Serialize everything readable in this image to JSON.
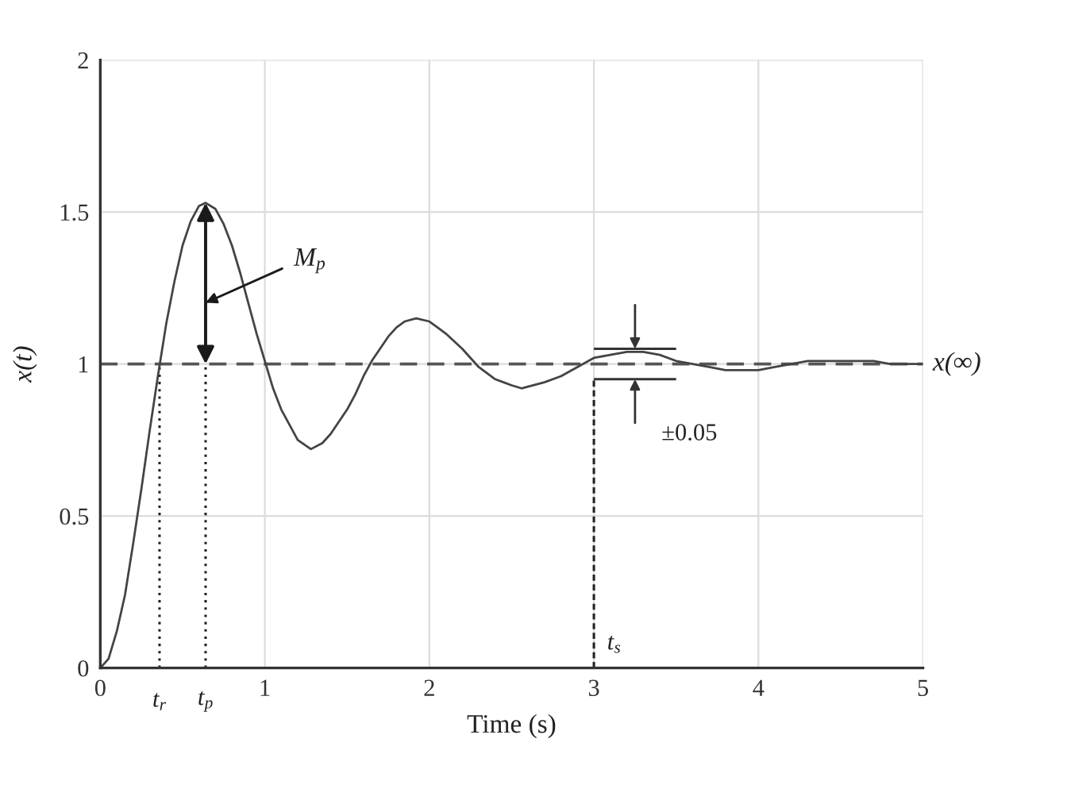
{
  "chart_data": {
    "type": "line",
    "xlabel": "Time (s)",
    "ylabel": "x(t)",
    "x": [
      0,
      0.05,
      0.1,
      0.15,
      0.2,
      0.25,
      0.3,
      0.35,
      0.4,
      0.45,
      0.5,
      0.55,
      0.6,
      0.64,
      0.7,
      0.75,
      0.8,
      0.85,
      0.9,
      0.95,
      1.0,
      1.05,
      1.1,
      1.2,
      1.28,
      1.35,
      1.4,
      1.5,
      1.55,
      1.6,
      1.65,
      1.7,
      1.75,
      1.8,
      1.85,
      1.92,
      2.0,
      2.05,
      2.1,
      2.2,
      2.25,
      2.3,
      2.35,
      2.4,
      2.45,
      2.5,
      2.56,
      2.7,
      2.8,
      2.9,
      3.0,
      3.1,
      3.2,
      3.3,
      3.4,
      3.5,
      3.6,
      3.7,
      3.8,
      3.9,
      4.0,
      4.1,
      4.2,
      4.3,
      4.4,
      4.5,
      4.6,
      4.7,
      4.8,
      4.9,
      5.0
    ],
    "series": [
      {
        "color": "#444444",
        "values": [
          0,
          0.03,
          0.12,
          0.24,
          0.41,
          0.59,
          0.78,
          0.96,
          1.13,
          1.27,
          1.39,
          1.47,
          1.52,
          1.53,
          1.51,
          1.46,
          1.39,
          1.3,
          1.2,
          1.1,
          1.01,
          0.92,
          0.85,
          0.75,
          0.72,
          0.74,
          0.77,
          0.85,
          0.9,
          0.96,
          1.01,
          1.05,
          1.09,
          1.12,
          1.14,
          1.15,
          1.14,
          1.12,
          1.1,
          1.05,
          1.02,
          0.99,
          0.97,
          0.95,
          0.94,
          0.93,
          0.92,
          0.94,
          0.96,
          0.99,
          1.02,
          1.03,
          1.04,
          1.04,
          1.03,
          1.01,
          1.0,
          0.99,
          0.98,
          0.98,
          0.98,
          0.99,
          1.0,
          1.01,
          1.01,
          1.01,
          1.01,
          1.01,
          1.0,
          1.0,
          1.0
        ]
      }
    ],
    "xlim": [
      0,
      5
    ],
    "ylim": [
      0,
      2
    ],
    "xticks": [
      0,
      1,
      2,
      3,
      4,
      5
    ],
    "yticks": [
      0,
      0.5,
      1,
      1.5,
      2
    ],
    "grid": true,
    "ref_lines": [
      {
        "axis": "y",
        "value": 1,
        "label": "x(∞)",
        "line_style": "dashed",
        "color": "#555555"
      },
      {
        "axis": "y",
        "value": 1.05,
        "color": "#333333"
      },
      {
        "axis": "y",
        "value": 0.95,
        "color": "#333333"
      },
      {
        "axis": "x",
        "value": 0.36,
        "label": "t$_{r}$",
        "line_style": "dotted",
        "color": "#222222"
      },
      {
        "axis": "x",
        "value": 0.64,
        "label": "t$_{p}$",
        "line_style": "dotted",
        "color": "#222222"
      },
      {
        "axis": "x",
        "value": 3,
        "label": "t$_{s}$",
        "line_style": "dashed",
        "color": "#222222"
      }
    ],
    "annotations": [
      "M$_{p}$",
      {
        "text": "±0.05",
        "x": 3.25,
        "y": 0.95
      }
    ]
  }
}
